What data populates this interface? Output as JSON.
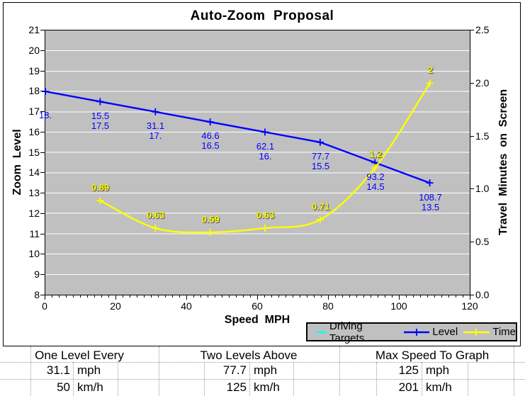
{
  "chart_data": {
    "type": "line",
    "title": "Auto-Zoom  Proposal",
    "plot_background": "#C0C0C0",
    "gridline_color": "#FFFFFF",
    "grid": "horizontal major, unit 1 (left axis)",
    "legend_position": "below plot, bottom right",
    "x_axis": {
      "label": "Speed  MPH",
      "min": 0,
      "max": 120,
      "ticks": [
        0,
        20,
        40,
        60,
        80,
        100,
        120
      ],
      "minor_tick_step": 2
    },
    "y_axis_left": {
      "label": "Zoom  Level",
      "min": 8,
      "max": 21,
      "tick_step": 1
    },
    "y_axis_right": {
      "label": "Travel  Minutes  on  Screen",
      "min": 0,
      "max": 2.5,
      "tick_values": [
        0,
        0.5,
        1,
        1.5,
        2,
        2.5
      ],
      "tick_labels": [
        "0.0",
        "0.5",
        "1.0",
        "1.5",
        "2.0",
        "2.5"
      ]
    },
    "series": [
      {
        "name": "Driving Targets",
        "color": "#00FFFF",
        "axis": "left",
        "marker": "none",
        "x": [],
        "y": []
      },
      {
        "name": "Level",
        "color": "#0000FF",
        "axis": "left",
        "marker": "plus",
        "smooth": false,
        "x": [
          0,
          15.5,
          31.1,
          46.6,
          62.1,
          77.7,
          93.2,
          108.7
        ],
        "y": [
          18,
          17.5,
          17,
          16.5,
          16,
          15.5,
          14.5,
          13.5
        ],
        "point_labels": [
          [
            "",
            "18."
          ],
          [
            "15.5",
            "17.5"
          ],
          [
            "31.1",
            "17."
          ],
          [
            "46.6",
            "16.5"
          ],
          [
            "62.1",
            "16."
          ],
          [
            "77.7",
            "15.5"
          ],
          [
            "93.2",
            "14.5"
          ],
          [
            "108.7",
            "13.5"
          ]
        ]
      },
      {
        "name": "Time",
        "color": "#FFFF00",
        "axis": "right",
        "marker": "plus",
        "smooth": true,
        "x": [
          15.5,
          31.1,
          46.6,
          62.1,
          77.7,
          93.2,
          108.7
        ],
        "y": [
          0.89,
          0.63,
          0.59,
          0.63,
          0.71,
          1.2,
          2
        ],
        "point_labels": [
          [
            "0.89"
          ],
          [
            "0.63"
          ],
          [
            "0.59"
          ],
          [
            "0.63"
          ],
          [
            "0.71"
          ],
          [
            "1.2"
          ],
          [
            "2"
          ]
        ]
      }
    ]
  },
  "table": {
    "groups": [
      {
        "header": "One Level Every",
        "rows": [
          {
            "value": "31.1",
            "unit": "mph"
          },
          {
            "value": "50",
            "unit": "km/h"
          }
        ]
      },
      {
        "header": "Two Levels Above",
        "rows": [
          {
            "value": "77.7",
            "unit": "mph"
          },
          {
            "value": "125",
            "unit": "km/h"
          }
        ]
      },
      {
        "header": "Max Speed To Graph",
        "rows": [
          {
            "value": "125",
            "unit": "mph"
          },
          {
            "value": "201",
            "unit": "km/h"
          }
        ]
      }
    ]
  }
}
